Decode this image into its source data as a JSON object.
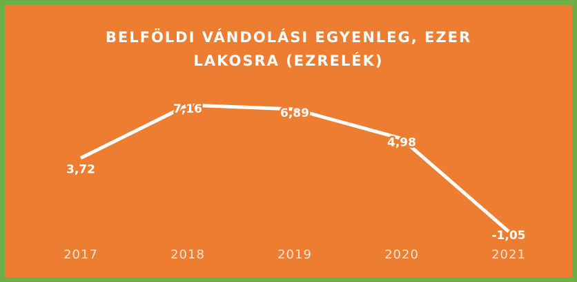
{
  "chart_data": {
    "type": "line",
    "title": "BELFÖLDI VÁNDOLÁSI EGYENLEG, EZER LAKOSRA (EZRELÉK)",
    "categories": [
      "2017",
      "2018",
      "2019",
      "2020",
      "2021"
    ],
    "values": [
      3.72,
      7.16,
      6.89,
      4.98,
      -1.05
    ],
    "value_labels": [
      "3,72",
      "7,16",
      "6,89",
      "4,98",
      "-1,05"
    ],
    "color": "#ffffff"
  }
}
